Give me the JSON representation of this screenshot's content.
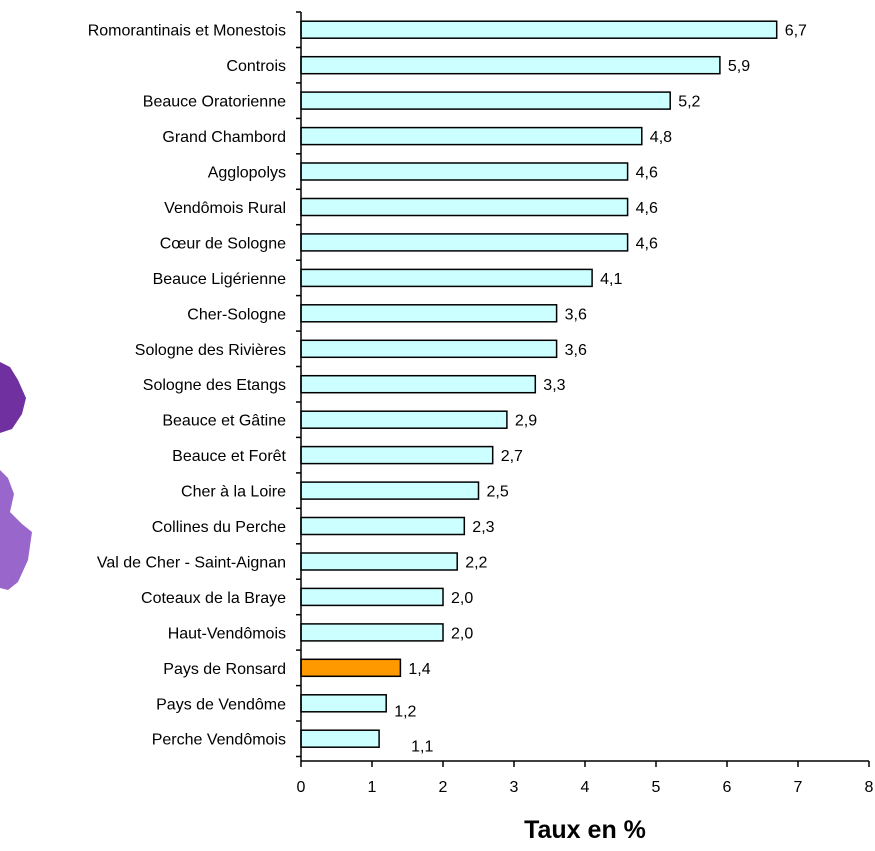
{
  "chart_data": {
    "type": "bar",
    "orientation": "horizontal",
    "categories": [
      "Romorantinais et  Monestois",
      "Controis",
      "Beauce Oratorienne",
      "Grand Chambord",
      "Agglopolys",
      "Vendômois Rural",
      "Cœur de Sologne",
      "Beauce Ligérienne",
      "Cher-Sologne",
      "Sologne des Rivières",
      "Sologne des Etangs",
      "Beauce et Gâtine",
      "Beauce et Forêt",
      "Cher à la Loire",
      "Collines du Perche",
      "Val de Cher - Saint-Aignan",
      "Coteaux de la Braye",
      "Haut-Vendômois",
      "Pays de Ronsard",
      "Pays de Vendôme",
      "Perche Vendômois"
    ],
    "values": [
      6.7,
      5.9,
      5.2,
      4.8,
      4.6,
      4.6,
      4.6,
      4.1,
      3.6,
      3.6,
      3.3,
      2.9,
      2.7,
      2.5,
      2.3,
      2.2,
      2.0,
      2.0,
      1.4,
      1.2,
      1.1
    ],
    "value_labels": [
      "6,7",
      "5,9",
      "5,2",
      "4,8",
      "4,6",
      "4,6",
      "4,6",
      "4,1",
      "3,6",
      "3,6",
      "3,3",
      "2,9",
      "2,7",
      "2,5",
      "2,3",
      "2,2",
      "2,0",
      "2,0",
      "1,4",
      "1,2",
      "1,1"
    ],
    "highlight_index": 18,
    "xlabel": "Taux en %",
    "xlim": [
      0,
      8
    ],
    "x_ticks": [
      "0",
      "1",
      "2",
      "3",
      "4",
      "5",
      "6",
      "7",
      "8"
    ],
    "grid": false,
    "legend": "none",
    "colors": {
      "bar": "#ccffff",
      "highlight": "#ff9900",
      "outline": "#000000",
      "decor_dark": "#7030a0",
      "decor_light": "#9966cc"
    }
  }
}
